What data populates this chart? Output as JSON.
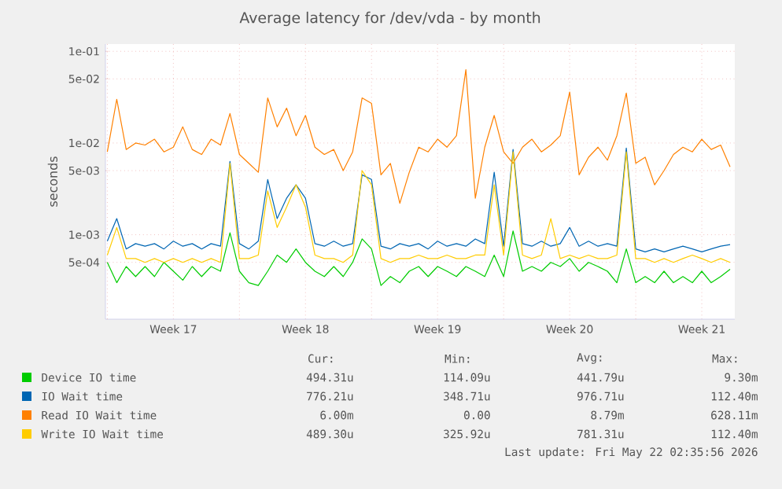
{
  "chart_data": {
    "type": "line",
    "title": "Average latency for /dev/vda - by month",
    "ylabel": "seconds",
    "x": [
      "2026-04-20T00:00",
      "2026-04-20T12:00",
      "2026-04-21T00:00",
      "2026-04-21T12:00",
      "2026-04-22T00:00",
      "2026-04-22T12:00",
      "2026-04-23T00:00",
      "2026-04-23T12:00",
      "2026-04-24T00:00",
      "2026-04-24T12:00",
      "2026-04-25T00:00",
      "2026-04-25T12:00",
      "2026-04-26T00:00",
      "2026-04-26T12:00",
      "2026-04-27T00:00",
      "2026-04-27T12:00",
      "2026-04-28T00:00",
      "2026-04-28T12:00",
      "2026-04-29T00:00",
      "2026-04-29T12:00",
      "2026-04-30T00:00",
      "2026-04-30T12:00",
      "2026-05-01T00:00",
      "2026-05-01T12:00",
      "2026-05-02T00:00",
      "2026-05-02T12:00",
      "2026-05-03T00:00",
      "2026-05-03T12:00",
      "2026-05-04T00:00",
      "2026-05-04T12:00",
      "2026-05-05T00:00",
      "2026-05-05T12:00",
      "2026-05-06T00:00",
      "2026-05-06T12:00",
      "2026-05-07T00:00",
      "2026-05-07T12:00",
      "2026-05-08T00:00",
      "2026-05-08T12:00",
      "2026-05-09T00:00",
      "2026-05-09T12:00",
      "2026-05-10T00:00",
      "2026-05-10T12:00",
      "2026-05-11T00:00",
      "2026-05-11T12:00",
      "2026-05-12T00:00",
      "2026-05-12T12:00",
      "2026-05-13T00:00",
      "2026-05-13T12:00",
      "2026-05-14T00:00",
      "2026-05-14T12:00",
      "2026-05-15T00:00",
      "2026-05-15T12:00",
      "2026-05-16T00:00",
      "2026-05-16T12:00",
      "2026-05-17T00:00",
      "2026-05-17T12:00",
      "2026-05-18T00:00",
      "2026-05-18T12:00",
      "2026-05-19T00:00",
      "2026-05-19T12:00",
      "2026-05-20T00:00",
      "2026-05-20T12:00",
      "2026-05-21T00:00",
      "2026-05-21T12:00",
      "2026-05-22T00:00",
      "2026-05-22T12:00",
      "2026-05-23T00:00"
    ],
    "series": [
      {
        "name": "Device IO time",
        "color": "#00cc00",
        "values": [
          0.0005,
          0.0003,
          0.00045,
          0.00035,
          0.00045,
          0.00035,
          0.0005,
          0.0004,
          0.00032,
          0.00045,
          0.00035,
          0.00045,
          0.0004,
          0.00105,
          0.0004,
          0.0003,
          0.00028,
          0.0004,
          0.0006,
          0.0005,
          0.0007,
          0.0005,
          0.0004,
          0.00035,
          0.00045,
          0.00035,
          0.0005,
          0.0009,
          0.0007,
          0.00028,
          0.00035,
          0.0003,
          0.0004,
          0.00045,
          0.00035,
          0.00045,
          0.0004,
          0.00035,
          0.00045,
          0.0004,
          0.00035,
          0.0006,
          0.00035,
          0.0011,
          0.0004,
          0.00045,
          0.0004,
          0.0005,
          0.00045,
          0.00055,
          0.0004,
          0.0005,
          0.00045,
          0.0004,
          0.0003,
          0.0007,
          0.0003,
          0.00035,
          0.0003,
          0.0004,
          0.0003,
          0.00035,
          0.0003,
          0.0004,
          0.0003,
          0.00035,
          0.00042
        ]
      },
      {
        "name": "IO Wait time",
        "color": "#0066b3",
        "values": [
          0.00085,
          0.0015,
          0.0007,
          0.0008,
          0.00075,
          0.0008,
          0.0007,
          0.00085,
          0.00075,
          0.0008,
          0.0007,
          0.0008,
          0.00075,
          0.0063,
          0.0008,
          0.0007,
          0.00085,
          0.004,
          0.0015,
          0.0025,
          0.0035,
          0.0025,
          0.0008,
          0.00075,
          0.00085,
          0.00075,
          0.0008,
          0.0045,
          0.004,
          0.00075,
          0.0007,
          0.0008,
          0.00075,
          0.0008,
          0.0007,
          0.00085,
          0.00075,
          0.0008,
          0.00075,
          0.0009,
          0.0008,
          0.0048,
          0.00075,
          0.0085,
          0.0008,
          0.00075,
          0.00085,
          0.00075,
          0.0008,
          0.0012,
          0.00075,
          0.00085,
          0.00075,
          0.0008,
          0.00075,
          0.0088,
          0.0007,
          0.00065,
          0.0007,
          0.00065,
          0.0007,
          0.00075,
          0.0007,
          0.00065,
          0.0007,
          0.00075,
          0.00078
        ]
      },
      {
        "name": "Read IO Wait time",
        "color": "#ff8000",
        "values": [
          0.008,
          0.03,
          0.0085,
          0.01,
          0.0095,
          0.011,
          0.008,
          0.009,
          0.015,
          0.0085,
          0.0075,
          0.011,
          0.0095,
          0.021,
          0.0075,
          0.006,
          0.0048,
          0.031,
          0.015,
          0.024,
          0.012,
          0.02,
          0.009,
          0.0075,
          0.0085,
          0.005,
          0.008,
          0.031,
          0.027,
          0.0045,
          0.006,
          0.0022,
          0.0048,
          0.009,
          0.008,
          0.011,
          0.009,
          0.012,
          0.063,
          0.0025,
          0.009,
          0.02,
          0.008,
          0.006,
          0.009,
          0.011,
          0.008,
          0.0095,
          0.012,
          0.036,
          0.0045,
          0.007,
          0.009,
          0.0065,
          0.012,
          0.035,
          0.006,
          0.007,
          0.0035,
          0.005,
          0.0075,
          0.009,
          0.008,
          0.011,
          0.0085,
          0.0095,
          0.0055
        ]
      },
      {
        "name": "Write IO Wait time",
        "color": "#ffcc00",
        "values": [
          0.0006,
          0.0012,
          0.00055,
          0.00055,
          0.0005,
          0.00055,
          0.0005,
          0.00055,
          0.0005,
          0.00055,
          0.0005,
          0.00055,
          0.0005,
          0.006,
          0.00055,
          0.00055,
          0.0006,
          0.003,
          0.0012,
          0.002,
          0.0035,
          0.002,
          0.0006,
          0.00055,
          0.00055,
          0.0005,
          0.0006,
          0.005,
          0.0035,
          0.00055,
          0.0005,
          0.00055,
          0.00055,
          0.0006,
          0.00055,
          0.00055,
          0.0006,
          0.00055,
          0.00055,
          0.0006,
          0.0006,
          0.0035,
          0.0006,
          0.008,
          0.0006,
          0.00055,
          0.0006,
          0.0015,
          0.00055,
          0.0006,
          0.00055,
          0.0006,
          0.00055,
          0.00055,
          0.0006,
          0.008,
          0.00055,
          0.00055,
          0.0005,
          0.00055,
          0.0005,
          0.00055,
          0.0006,
          0.00055,
          0.0005,
          0.00055,
          0.0005
        ]
      }
    ],
    "xlim": [
      "2026-04-19T21:36",
      "2026-05-23T06:00"
    ],
    "xticks": [
      {
        "value": "2026-04-20",
        "label": null
      },
      {
        "value": "2026-04-23T12:00",
        "label": "Week 17"
      },
      {
        "value": "2026-04-27",
        "label": null
      },
      {
        "value": "2026-04-30T12:00",
        "label": "Week 18"
      },
      {
        "value": "2026-05-04",
        "label": null
      },
      {
        "value": "2026-05-07T12:00",
        "label": "Week 19"
      },
      {
        "value": "2026-05-11",
        "label": null
      },
      {
        "value": "2026-05-14T12:00",
        "label": "Week 20"
      },
      {
        "value": "2026-05-18",
        "label": null
      },
      {
        "value": "2026-05-21T12:00",
        "label": "Week 21"
      }
    ],
    "ylim": [
      0.00012,
      0.12
    ],
    "yticks": [
      {
        "value": 0.0005,
        "label": "5e-04"
      },
      {
        "value": 0.001,
        "label": "1e-03"
      },
      {
        "value": 0.005,
        "label": "5e-03"
      },
      {
        "value": 0.01,
        "label": "1e-02"
      },
      {
        "value": 0.05,
        "label": "5e-02"
      },
      {
        "value": 0.1,
        "label": "1e-01"
      }
    ],
    "log": "y",
    "grid": true,
    "legend": "bottom",
    "annotations": [
      "Cur:",
      "Min:",
      "Avg:",
      "Max:",
      "494.31u",
      "114.09u",
      "441.79u",
      "9.30m",
      "776.21u",
      "348.71u",
      "976.71u",
      "112.40m",
      "6.00m",
      "0.00",
      "8.79m",
      "628.11m",
      "489.30u",
      "325.92u",
      "781.31u",
      "112.40m",
      "Last update: Fri May 22 02:35:56 2026"
    ]
  }
}
